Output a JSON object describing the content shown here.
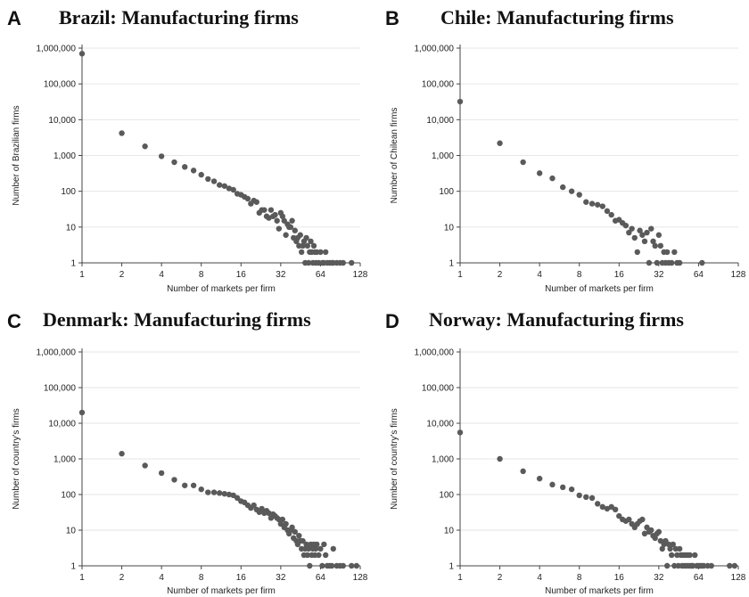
{
  "chart_data": [
    {
      "type": "scatter",
      "panel_letter": "A",
      "title": "Brazil: Manufacturing firms",
      "xlabel": "Number of markets per firm",
      "ylabel": "Number of Brazilian firms",
      "x_scale": "log2",
      "y_scale": "log10",
      "xlim": [
        1,
        128
      ],
      "ylim": [
        1,
        1000000
      ],
      "x_ticks": [
        1,
        2,
        4,
        8,
        16,
        32,
        64,
        128
      ],
      "x_tick_labels": [
        "1",
        "2",
        "4",
        "8",
        "16",
        "32",
        "64",
        "128"
      ],
      "y_ticks": [
        1,
        10,
        100,
        1000,
        10000,
        100000,
        1000000
      ],
      "y_tick_labels": [
        "1",
        "10",
        "100",
        "1,000",
        "10,000",
        "100,000",
        "1,000,000"
      ],
      "grid": "horizontal",
      "points": [
        [
          1,
          700000
        ],
        [
          2,
          4200
        ],
        [
          3,
          1800
        ],
        [
          4,
          950
        ],
        [
          5,
          650
        ],
        [
          6,
          480
        ],
        [
          7,
          380
        ],
        [
          8,
          290
        ],
        [
          9,
          220
        ],
        [
          10,
          190
        ],
        [
          11,
          150
        ],
        [
          12,
          140
        ],
        [
          13,
          120
        ],
        [
          14,
          110
        ],
        [
          15,
          85
        ],
        [
          16,
          80
        ],
        [
          17,
          70
        ],
        [
          18,
          62
        ],
        [
          19,
          45
        ],
        [
          20,
          55
        ],
        [
          21,
          50
        ],
        [
          22,
          25
        ],
        [
          23,
          30
        ],
        [
          24,
          30
        ],
        [
          25,
          20
        ],
        [
          26,
          18
        ],
        [
          27,
          30
        ],
        [
          28,
          20
        ],
        [
          29,
          22
        ],
        [
          30,
          15
        ],
        [
          31,
          9
        ],
        [
          32,
          25
        ],
        [
          33,
          20
        ],
        [
          34,
          15
        ],
        [
          35,
          6
        ],
        [
          36,
          12
        ],
        [
          37,
          10
        ],
        [
          38,
          10
        ],
        [
          39,
          15
        ],
        [
          40,
          5
        ],
        [
          41,
          8
        ],
        [
          42,
          4
        ],
        [
          43,
          5
        ],
        [
          44,
          3
        ],
        [
          45,
          6
        ],
        [
          46,
          2
        ],
        [
          47,
          3
        ],
        [
          48,
          4
        ],
        [
          49,
          1
        ],
        [
          50,
          5
        ],
        [
          51,
          3
        ],
        [
          52,
          1
        ],
        [
          53,
          2
        ],
        [
          54,
          4
        ],
        [
          55,
          2
        ],
        [
          56,
          1
        ],
        [
          57,
          3
        ],
        [
          58,
          2
        ],
        [
          59,
          1
        ],
        [
          60,
          2
        ],
        [
          62,
          1
        ],
        [
          64,
          2
        ],
        [
          66,
          1
        ],
        [
          68,
          1
        ],
        [
          70,
          2
        ],
        [
          72,
          1
        ],
        [
          75,
          1
        ],
        [
          78,
          1
        ],
        [
          80,
          1
        ],
        [
          85,
          1
        ],
        [
          90,
          1
        ],
        [
          95,
          1
        ],
        [
          110,
          1
        ]
      ]
    },
    {
      "type": "scatter",
      "panel_letter": "B",
      "title": "Chile: Manufacturing firms",
      "xlabel": "Number of markets per firm",
      "ylabel": "Number of Chilean firms",
      "x_scale": "log2",
      "y_scale": "log10",
      "xlim": [
        1,
        128
      ],
      "ylim": [
        1,
        1000000
      ],
      "x_ticks": [
        1,
        2,
        4,
        8,
        16,
        32,
        64,
        128
      ],
      "x_tick_labels": [
        "1",
        "2",
        "4",
        "8",
        "16",
        "32",
        "64",
        "128"
      ],
      "y_ticks": [
        1,
        10,
        100,
        1000,
        10000,
        100000,
        1000000
      ],
      "y_tick_labels": [
        "1",
        "10",
        "100",
        "1,000",
        "10,000",
        "100,000",
        "1,000,000"
      ],
      "grid": "horizontal",
      "points": [
        [
          1,
          32000
        ],
        [
          2,
          2200
        ],
        [
          3,
          650
        ],
        [
          4,
          320
        ],
        [
          5,
          230
        ],
        [
          6,
          130
        ],
        [
          7,
          100
        ],
        [
          8,
          80
        ],
        [
          9,
          50
        ],
        [
          10,
          45
        ],
        [
          11,
          42
        ],
        [
          12,
          38
        ],
        [
          13,
          28
        ],
        [
          14,
          22
        ],
        [
          15,
          15
        ],
        [
          16,
          16
        ],
        [
          17,
          13
        ],
        [
          18,
          11
        ],
        [
          19,
          7
        ],
        [
          20,
          9
        ],
        [
          21,
          5
        ],
        [
          22,
          2
        ],
        [
          23,
          8
        ],
        [
          24,
          6
        ],
        [
          25,
          4
        ],
        [
          26,
          7
        ],
        [
          27,
          1
        ],
        [
          28,
          9
        ],
        [
          29,
          4
        ],
        [
          30,
          3
        ],
        [
          31,
          1
        ],
        [
          32,
          6
        ],
        [
          33,
          3
        ],
        [
          34,
          1
        ],
        [
          35,
          2
        ],
        [
          36,
          1
        ],
        [
          37,
          2
        ],
        [
          38,
          1
        ],
        [
          40,
          1
        ],
        [
          42,
          2
        ],
        [
          44,
          1
        ],
        [
          46,
          1
        ],
        [
          68,
          1
        ]
      ]
    },
    {
      "type": "scatter",
      "panel_letter": "C",
      "title": "Denmark: Manufacturing firms",
      "xlabel": "Number of markets per firm",
      "ylabel": "Number of country's firms",
      "x_scale": "log2",
      "y_scale": "log10",
      "xlim": [
        1,
        128
      ],
      "ylim": [
        1,
        1000000
      ],
      "x_ticks": [
        1,
        2,
        4,
        8,
        16,
        32,
        64,
        128
      ],
      "x_tick_labels": [
        "1",
        "2",
        "4",
        "8",
        "16",
        "32",
        "64",
        "128"
      ],
      "y_ticks": [
        1,
        10,
        100,
        1000,
        10000,
        100000,
        1000000
      ],
      "y_tick_labels": [
        "1",
        "10",
        "100",
        "1,000",
        "10,000",
        "100,000",
        "1,000,000"
      ],
      "grid": "horizontal",
      "points": [
        [
          1,
          20000
        ],
        [
          2,
          1400
        ],
        [
          3,
          650
        ],
        [
          4,
          400
        ],
        [
          5,
          260
        ],
        [
          6,
          180
        ],
        [
          7,
          180
        ],
        [
          8,
          140
        ],
        [
          9,
          115
        ],
        [
          10,
          115
        ],
        [
          11,
          110
        ],
        [
          12,
          105
        ],
        [
          13,
          100
        ],
        [
          14,
          95
        ],
        [
          15,
          80
        ],
        [
          16,
          65
        ],
        [
          17,
          60
        ],
        [
          18,
          50
        ],
        [
          19,
          42
        ],
        [
          20,
          50
        ],
        [
          21,
          38
        ],
        [
          22,
          32
        ],
        [
          23,
          40
        ],
        [
          24,
          30
        ],
        [
          25,
          35
        ],
        [
          26,
          30
        ],
        [
          27,
          22
        ],
        [
          28,
          28
        ],
        [
          29,
          25
        ],
        [
          30,
          22
        ],
        [
          31,
          20
        ],
        [
          32,
          15
        ],
        [
          33,
          20
        ],
        [
          34,
          12
        ],
        [
          35,
          15
        ],
        [
          36,
          10
        ],
        [
          37,
          8
        ],
        [
          38,
          10
        ],
        [
          39,
          12
        ],
        [
          40,
          6
        ],
        [
          41,
          9
        ],
        [
          42,
          5
        ],
        [
          43,
          4
        ],
        [
          44,
          7
        ],
        [
          45,
          5
        ],
        [
          46,
          3
        ],
        [
          47,
          5
        ],
        [
          48,
          2
        ],
        [
          49,
          3
        ],
        [
          50,
          4
        ],
        [
          51,
          2
        ],
        [
          52,
          3
        ],
        [
          53,
          1
        ],
        [
          54,
          4
        ],
        [
          55,
          2
        ],
        [
          56,
          3
        ],
        [
          57,
          4
        ],
        [
          58,
          2
        ],
        [
          59,
          3
        ],
        [
          60,
          4
        ],
        [
          62,
          2
        ],
        [
          64,
          3
        ],
        [
          66,
          1
        ],
        [
          68,
          4
        ],
        [
          70,
          2
        ],
        [
          72,
          1
        ],
        [
          75,
          1
        ],
        [
          78,
          1
        ],
        [
          80,
          3
        ],
        [
          85,
          1
        ],
        [
          90,
          1
        ],
        [
          95,
          1
        ],
        [
          110,
          1
        ],
        [
          120,
          1
        ]
      ]
    },
    {
      "type": "scatter",
      "panel_letter": "D",
      "title": "Norway: Manufacturing firms",
      "xlabel": "Number of markets per firm",
      "ylabel": "Number of country's firms",
      "x_scale": "log2",
      "y_scale": "log10",
      "xlim": [
        1,
        128
      ],
      "ylim": [
        1,
        1000000
      ],
      "x_ticks": [
        1,
        2,
        4,
        8,
        16,
        32,
        64,
        128
      ],
      "x_tick_labels": [
        "1",
        "2",
        "4",
        "8",
        "16",
        "32",
        "64",
        "128"
      ],
      "y_ticks": [
        1,
        10,
        100,
        1000,
        10000,
        100000,
        1000000
      ],
      "y_tick_labels": [
        "1",
        "10",
        "100",
        "1,000",
        "10,000",
        "100,000",
        "1,000,000"
      ],
      "grid": "horizontal",
      "points": [
        [
          1,
          5500
        ],
        [
          2,
          1000
        ],
        [
          3,
          450
        ],
        [
          4,
          280
        ],
        [
          5,
          190
        ],
        [
          6,
          160
        ],
        [
          7,
          140
        ],
        [
          8,
          95
        ],
        [
          9,
          85
        ],
        [
          10,
          80
        ],
        [
          11,
          55
        ],
        [
          12,
          45
        ],
        [
          13,
          40
        ],
        [
          14,
          45
        ],
        [
          15,
          38
        ],
        [
          16,
          25
        ],
        [
          17,
          20
        ],
        [
          18,
          18
        ],
        [
          19,
          20
        ],
        [
          20,
          15
        ],
        [
          21,
          12
        ],
        [
          22,
          15
        ],
        [
          23,
          18
        ],
        [
          24,
          20
        ],
        [
          25,
          8
        ],
        [
          26,
          12
        ],
        [
          27,
          9
        ],
        [
          28,
          10
        ],
        [
          29,
          7
        ],
        [
          30,
          6
        ],
        [
          31,
          8
        ],
        [
          32,
          9
        ],
        [
          33,
          5
        ],
        [
          34,
          3
        ],
        [
          35,
          4
        ],
        [
          36,
          5
        ],
        [
          37,
          1
        ],
        [
          38,
          4
        ],
        [
          39,
          3
        ],
        [
          40,
          2
        ],
        [
          41,
          4
        ],
        [
          42,
          1
        ],
        [
          43,
          3
        ],
        [
          44,
          2
        ],
        [
          45,
          1
        ],
        [
          46,
          3
        ],
        [
          47,
          2
        ],
        [
          48,
          1
        ],
        [
          49,
          2
        ],
        [
          50,
          1
        ],
        [
          51,
          2
        ],
        [
          52,
          1
        ],
        [
          53,
          2
        ],
        [
          54,
          1
        ],
        [
          55,
          2
        ],
        [
          56,
          1
        ],
        [
          57,
          1
        ],
        [
          58,
          1
        ],
        [
          60,
          2
        ],
        [
          62,
          1
        ],
        [
          64,
          1
        ],
        [
          66,
          1
        ],
        [
          68,
          1
        ],
        [
          70,
          1
        ],
        [
          75,
          1
        ],
        [
          80,
          1
        ],
        [
          110,
          1
        ],
        [
          120,
          1
        ]
      ]
    }
  ]
}
